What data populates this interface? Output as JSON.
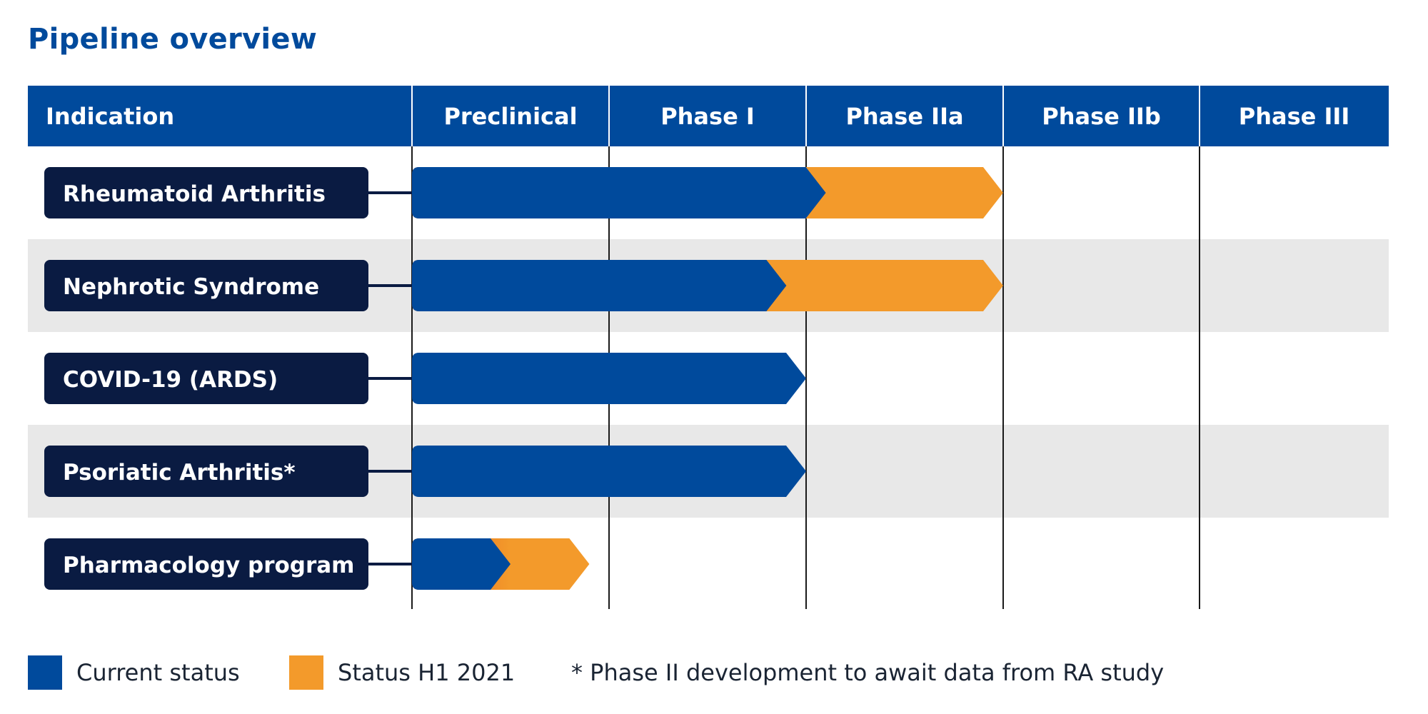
{
  "title": "Pipeline overview",
  "colors": {
    "header_bg": "#004a9c",
    "current": "#004a9c",
    "h1_2021_start": "#e05a1c",
    "h1_2021_end": "#f39a2b",
    "label_bg": "#0a1b42",
    "stripe": "#e8e8e8",
    "grid_line": "#1a1a1a"
  },
  "legend": {
    "current_label": "Current status",
    "h1_label": "Status H1 2021",
    "footnote": "* Phase II development to await data from RA study"
  },
  "chart_data": {
    "type": "bar",
    "orientation": "horizontal",
    "title": "Pipeline overview",
    "header_label": "Indication",
    "stages": [
      "Preclinical",
      "Phase I",
      "Phase IIa",
      "Phase IIb",
      "Phase III"
    ],
    "series": [
      {
        "name": "Current status",
        "values": [
          2.1,
          1.9,
          2.0,
          2.0,
          0.5
        ]
      },
      {
        "name": "Status H1 2021",
        "values": [
          3.0,
          3.0,
          2.0,
          2.0,
          0.9
        ]
      }
    ],
    "categories": [
      "Rheumatoid Arthritis",
      "Nephrotic Syndrome",
      "COVID-19 (ARDS)",
      "Psoriatic Arthritis*",
      "Pharmacology program"
    ],
    "value_unit": "stages completed (1.0 = end of Preclinical, 2.0 = end of Phase I, 3.0 = end of Phase IIa)",
    "xlim": [
      0,
      5
    ],
    "legend_position": "bottom"
  }
}
